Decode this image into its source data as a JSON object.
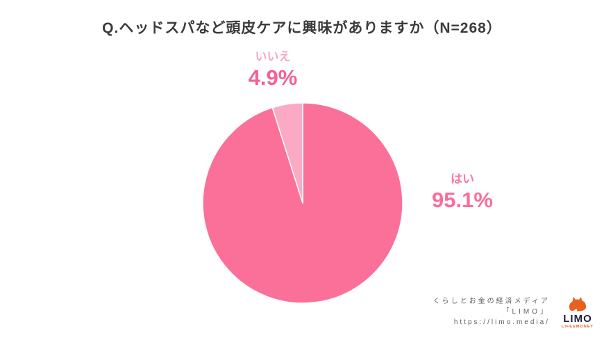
{
  "title": "Q.ヘッドスパなど頭皮ケアに興味がありますか（N=268）",
  "chart_data": {
    "type": "pie",
    "title": "Q.ヘッドスパなど頭皮ケアに興味がありますか（N=268）",
    "sample_size": "N=268",
    "categories": [
      "はい",
      "いいえ"
    ],
    "values": [
      95.1,
      4.9
    ],
    "unit": "%",
    "colors": [
      "#fa7099",
      "#fbaac5"
    ],
    "start_angle_deg": -90,
    "direction": "clockwise",
    "legend_position": "none",
    "labels": [
      {
        "name": "はい",
        "value_text": "95.1%"
      },
      {
        "name": "いいえ",
        "value_text": "4.9%"
      }
    ]
  },
  "footer": {
    "line1": "くらしとお金の経済メディア",
    "line2": "「LIMO」",
    "line3": "https://limo.media/",
    "logo_text": "LIMO",
    "logo_subtext": "LIFE&MONEY",
    "logo_color": "#e8611f"
  }
}
